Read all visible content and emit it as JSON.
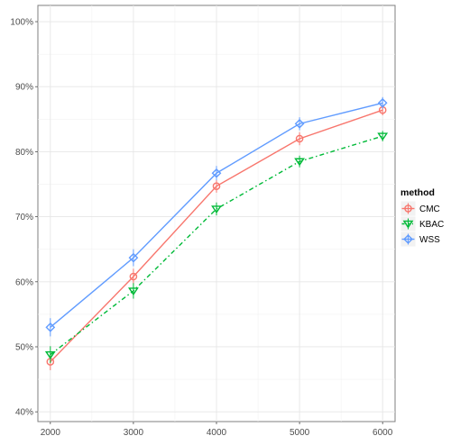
{
  "chart_data": {
    "type": "line",
    "title": "",
    "xlabel": "",
    "ylabel": "",
    "x": [
      2000,
      3000,
      4000,
      5000,
      6000
    ],
    "x_tick_labels": [
      "2000",
      "3000",
      "4000",
      "5000",
      "6000"
    ],
    "y_ticks": [
      40,
      50,
      60,
      70,
      80,
      90,
      100
    ],
    "y_tick_labels": [
      "40%",
      "50%",
      "60%",
      "70%",
      "80%",
      "90%",
      "100%"
    ],
    "xlim": [
      1850,
      6150
    ],
    "ylim": [
      38.5,
      102.5
    ],
    "grid": true,
    "legend": {
      "title": "method",
      "placement": "right"
    },
    "series": [
      {
        "name": "CMC",
        "color": "#F8766D",
        "line_style": "solid",
        "marker": "circle",
        "values": [
          47.7,
          60.8,
          74.7,
          82.0,
          86.4
        ],
        "error": [
          1.3,
          1.2,
          1.0,
          1.0,
          0.8
        ]
      },
      {
        "name": "KBAC",
        "color": "#00BA38",
        "line_style": "dashdot",
        "marker": "triangle-down",
        "values": [
          48.8,
          58.6,
          71.2,
          78.5,
          82.4
        ],
        "error": [
          1.3,
          1.2,
          1.0,
          0.9,
          0.8
        ]
      },
      {
        "name": "WSS",
        "color": "#619CFF",
        "line_style": "solid",
        "marker": "diamond",
        "values": [
          53.0,
          63.7,
          76.7,
          84.3,
          87.5
        ],
        "error": [
          1.4,
          1.3,
          1.1,
          1.0,
          0.9
        ]
      }
    ]
  }
}
